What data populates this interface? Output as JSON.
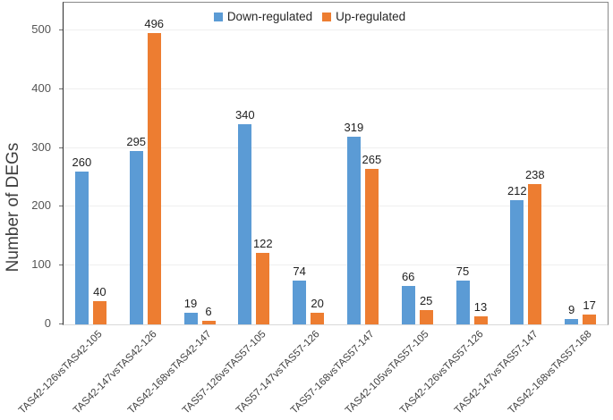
{
  "chart_data": {
    "type": "bar",
    "title": "",
    "xlabel": "",
    "ylabel": "Number of DEGs",
    "ylim": [
      0,
      500
    ],
    "yticks": [
      0,
      100,
      200,
      300,
      400,
      500
    ],
    "grid": true,
    "legend_position": "top-center",
    "categories": [
      "TAS42-126vsTAS42-105",
      "TAS42-147vsTAS42-126",
      "TAS42-168vsTAS42-147",
      "TAS57-126vsTAS57-105",
      "TAS57-147vsTAS57-126",
      "TAS57-168vsTAS57-147",
      "TAS42-105vsTAS57-105",
      "TAS42-126vsTAS57-126",
      "TAS42-147vsTAS57-147",
      "TAS42-168vsTAS57-168"
    ],
    "series": [
      {
        "name": "Down-regulated",
        "color": "#5B9BD5",
        "values": [
          260,
          295,
          19,
          340,
          74,
          319,
          66,
          75,
          212,
          9
        ]
      },
      {
        "name": "Up-regulated",
        "color": "#ED7D31",
        "values": [
          40,
          496,
          6,
          122,
          20,
          265,
          25,
          13,
          238,
          17
        ]
      }
    ],
    "colors": {
      "down_regulated": "#5B9BD5",
      "up_regulated": "#ED7D31",
      "gridline": "#efefef",
      "axis": "#2b2b2b"
    }
  }
}
